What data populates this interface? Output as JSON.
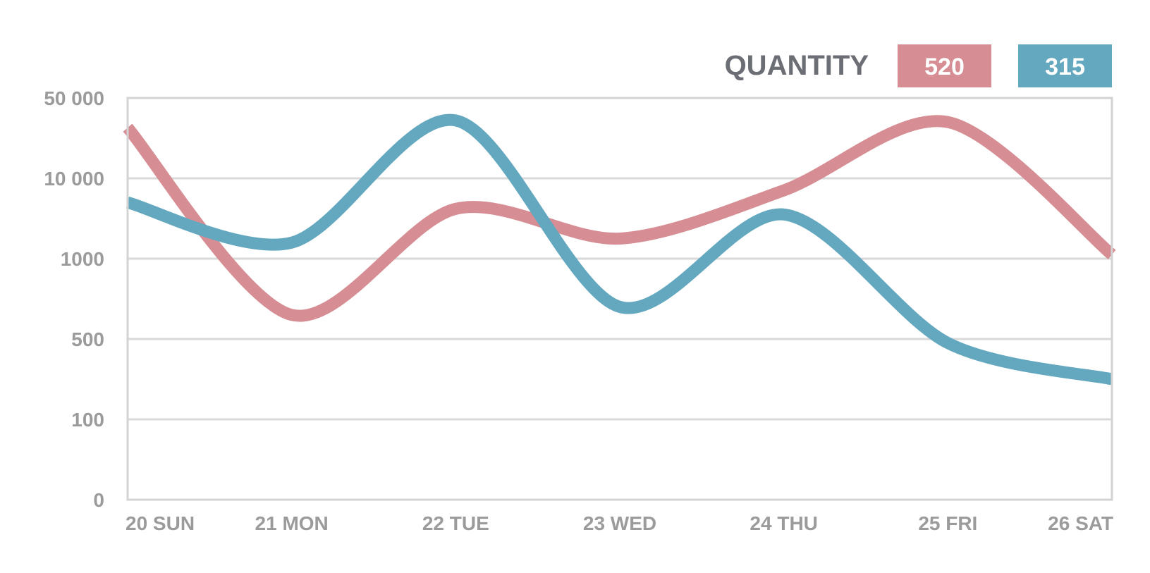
{
  "chart_data": {
    "type": "line",
    "title": "",
    "legend": {
      "title": "QUANTITY",
      "placement": "top-right",
      "items": [
        {
          "label": "520",
          "color": "#d68d93"
        },
        {
          "label": "315",
          "color": "#63a8bf"
        }
      ]
    },
    "categories": [
      "20 SUN",
      "21 MON",
      "22 TUE",
      "23 WED",
      "24 THU",
      "25 FRI",
      "26 SAT"
    ],
    "y_axis": {
      "scale": "categorical-log",
      "ticks": [
        "0",
        "100",
        "500",
        "1000",
        "10 000",
        "50 000"
      ]
    },
    "grid": true,
    "series": [
      {
        "label": "520",
        "color": "#d68d93",
        "x": [
          "20 SUN",
          "21 MON",
          "22 TUE",
          "23 WED",
          "24 THU",
          "25 FRI",
          "26 SAT"
        ],
        "y": [
          30000,
          640,
          2200,
          1450,
          3600,
          17000,
          1100
        ],
        "y_level": [
          4.63,
          2.3,
          3.62,
          3.25,
          3.85,
          4.7,
          3.05
        ]
      },
      {
        "label": "315",
        "color": "#63a8bf",
        "x": [
          "20 SUN",
          "21 MON",
          "22 TUE",
          "23 WED",
          "24 THU",
          "25 FRI",
          "26 SAT"
        ],
        "y": [
          5000,
          1200,
          18000,
          700,
          2050,
          450,
          220
        ],
        "y_level": [
          3.7,
          3.2,
          4.72,
          2.4,
          3.55,
          1.95,
          1.5
        ]
      }
    ]
  }
}
